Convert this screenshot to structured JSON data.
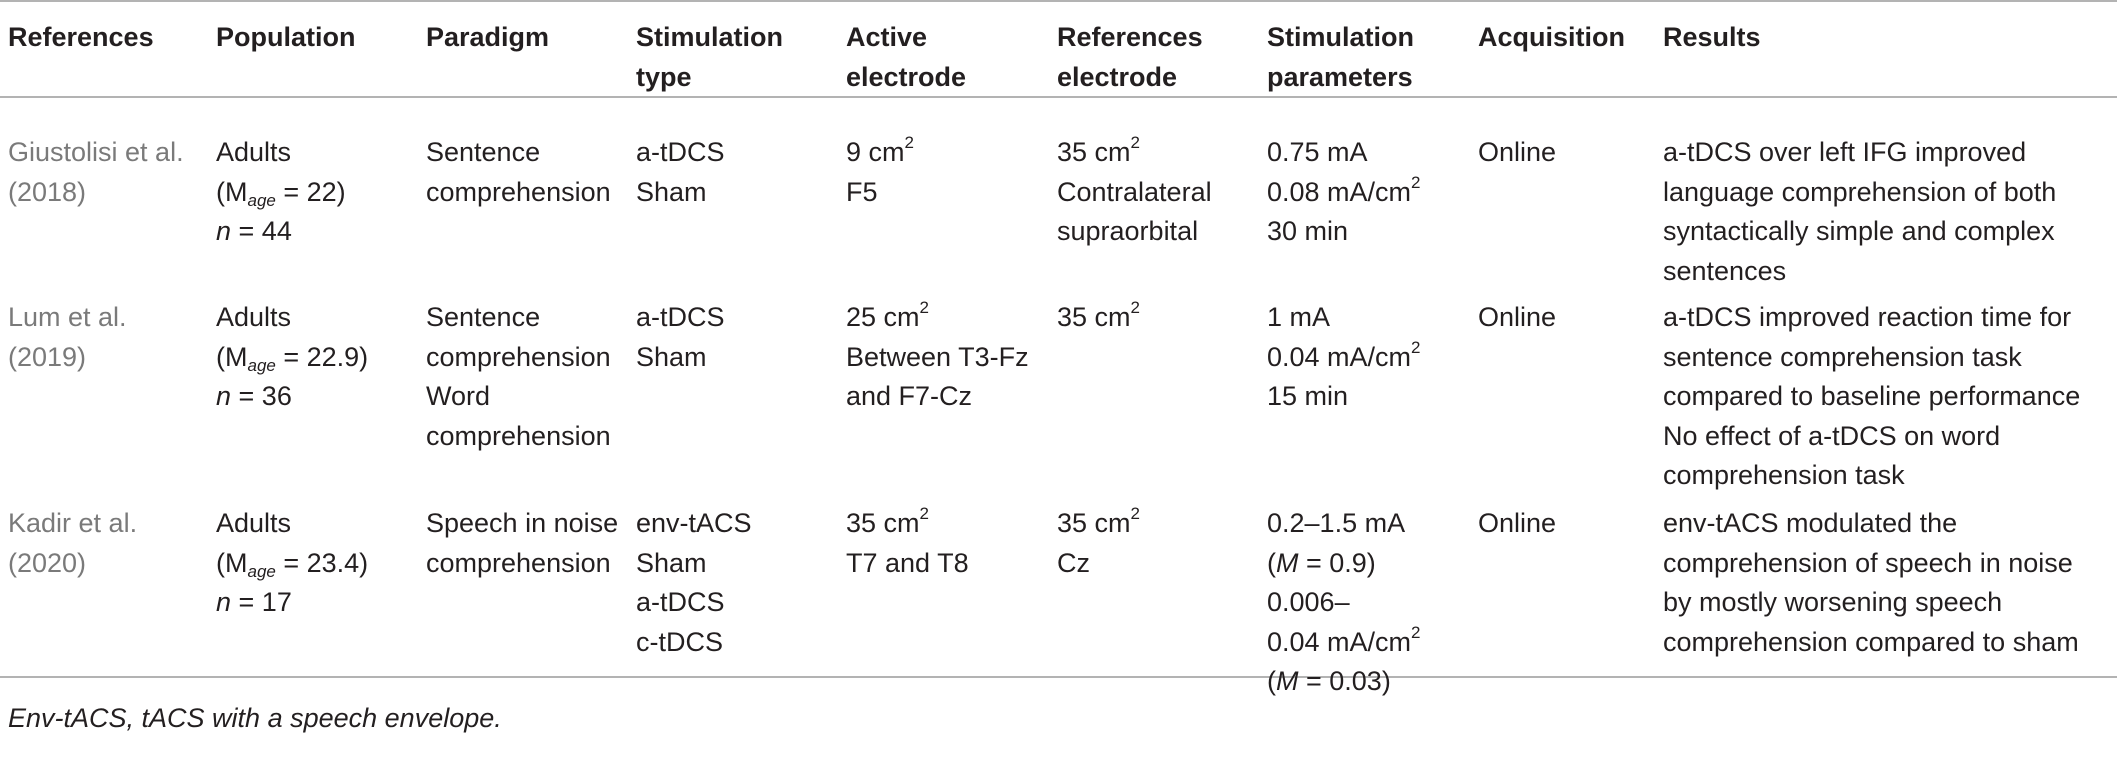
{
  "headers": [
    [
      "References"
    ],
    [
      "Population"
    ],
    [
      "Paradigm"
    ],
    [
      "Stimulation",
      "type"
    ],
    [
      "Active",
      "electrode"
    ],
    [
      "References",
      "electrode"
    ],
    [
      "Stimulation",
      "parameters"
    ],
    [
      "Acquisition"
    ],
    [
      "Results"
    ]
  ],
  "rows": [
    {
      "reference": [
        "Giustolisi et al.",
        "(2018)"
      ],
      "population": {
        "group": "Adults",
        "m_open": "(M",
        "m_sub": "age",
        "m_value": " = 22)",
        "n_label": "n",
        "n_value": " = 44"
      },
      "paradigm": [
        "Sentence",
        "comprehension"
      ],
      "stim_type": [
        "a-tDCS",
        "Sham"
      ],
      "active_electrode": {
        "size": "9 cm",
        "exp": "2",
        "lines": [
          "F5"
        ]
      },
      "ref_electrode": {
        "size": "35 cm",
        "exp": "2",
        "lines": [
          "Contralateral",
          "supraorbital"
        ]
      },
      "params": {
        "intensity": "0.75 mA",
        "density": "0.08 mA/cm",
        "exp": "2",
        "duration": "30 min"
      },
      "acquisition": "Online",
      "results": [
        "a-tDCS over left IFG improved",
        "language comprehension of both",
        "syntactically simple and complex",
        "sentences"
      ]
    },
    {
      "reference": [
        "Lum et al.",
        "(2019)"
      ],
      "population": {
        "group": "Adults",
        "m_open": "(M",
        "m_sub": "age",
        "m_value": " = 22.9)",
        "n_label": "n",
        "n_value": " = 36"
      },
      "paradigm": [
        "Sentence",
        "comprehension",
        "Word",
        "comprehension"
      ],
      "stim_type": [
        "a-tDCS",
        "Sham"
      ],
      "active_electrode": {
        "size": "25 cm",
        "exp": "2",
        "lines": [
          "Between T3-Fz",
          "and F7-Cz"
        ]
      },
      "ref_electrode": {
        "size": "35 cm",
        "exp": "2",
        "lines": []
      },
      "params": {
        "intensity": "1 mA",
        "density": "0.04 mA/cm",
        "exp": "2",
        "duration": "15 min"
      },
      "acquisition": "Online",
      "results": [
        "a-tDCS improved reaction time for",
        "sentence comprehension task",
        "compared to baseline performance",
        "No effect of a-tDCS on word",
        "comprehension task"
      ]
    },
    {
      "reference": [
        "Kadir et al.",
        "(2020)"
      ],
      "population": {
        "group": "Adults",
        "m_open": "(M",
        "m_sub": "age",
        "m_value": " = 23.4)",
        "n_label": "n",
        "n_value": " = 17"
      },
      "paradigm": [
        "Speech in noise",
        "comprehension"
      ],
      "stim_type": [
        "env-tACS",
        "Sham",
        "a-tDCS",
        "c-tDCS"
      ],
      "active_electrode": {
        "size": "35 cm",
        "exp": "2",
        "lines": [
          "T7 and T8"
        ]
      },
      "ref_electrode": {
        "size": "35 cm",
        "exp": "2",
        "lines": [
          "Cz"
        ]
      },
      "params": {
        "intensity": "0.2–1.5 mA",
        "m1_open": "(",
        "m1_label": "M",
        "m1_value": " = 0.9)",
        "density_a": "0.006–",
        "density_b": "0.04 mA/cm",
        "exp": "2",
        "m2_open": "(",
        "m2_label": "M",
        "m2_value": " = 0.03)"
      },
      "acquisition": "Online",
      "results": [
        "env-tACS modulated the",
        "comprehension of speech in noise",
        "by mostly worsening speech",
        "comprehension compared to sham"
      ]
    }
  ],
  "footnote": "Env-tACS, tACS with a speech envelope."
}
